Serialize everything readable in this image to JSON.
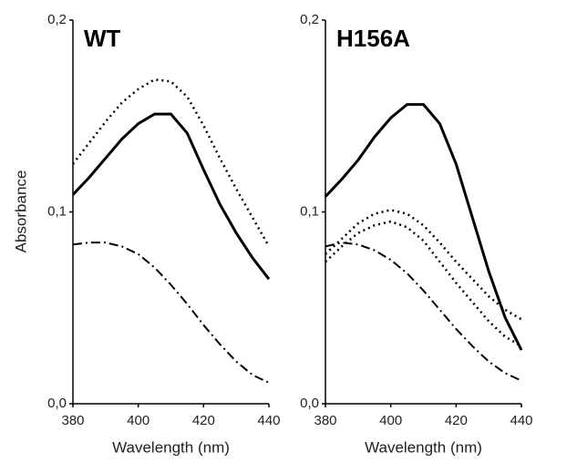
{
  "chart_data": [
    {
      "type": "line",
      "title": "WT",
      "y_label": "Absorbance",
      "x_label": "Wavelength (nm)",
      "x": [
        380,
        385,
        390,
        395,
        400,
        405,
        410,
        415,
        420,
        425,
        430,
        435,
        440
      ],
      "xlim": [
        380,
        440
      ],
      "xticks": [
        380,
        400,
        420,
        440
      ],
      "ylim": [
        0,
        0.2
      ],
      "yticks": [
        {
          "value": 0,
          "label": "0,0"
        },
        {
          "value": 0.1,
          "label": "0,1"
        },
        {
          "value": 0.2,
          "label": "0,2"
        }
      ],
      "series": [
        {
          "color": "#000000",
          "dash": "solid",
          "values": [
            0.109,
            0.118,
            0.128,
            0.138,
            0.146,
            0.151,
            0.151,
            0.141,
            0.122,
            0.104,
            0.089,
            0.076,
            0.065
          ]
        },
        {
          "color": "#000000",
          "dash": "dotted",
          "values": [
            0.125,
            0.136,
            0.147,
            0.157,
            0.164,
            0.169,
            0.168,
            0.16,
            0.145,
            0.128,
            0.112,
            0.097,
            0.082
          ]
        },
        {
          "color": "#000000",
          "dash": "dashdot",
          "values": [
            0.083,
            0.084,
            0.084,
            0.082,
            0.078,
            0.071,
            0.062,
            0.052,
            0.041,
            0.031,
            0.022,
            0.015,
            0.011
          ]
        }
      ]
    },
    {
      "type": "line",
      "title": "H156A",
      "x_label": "Wavelength (nm)",
      "x": [
        380,
        385,
        390,
        395,
        400,
        405,
        410,
        415,
        420,
        425,
        430,
        435,
        440
      ],
      "xlim": [
        380,
        440
      ],
      "xticks": [
        380,
        400,
        420,
        440
      ],
      "ylim": [
        0,
        0.2
      ],
      "yticks": [
        {
          "value": 0,
          "label": "0,0"
        },
        {
          "value": 0.1,
          "label": "0,1"
        },
        {
          "value": 0.2,
          "label": "0,2"
        }
      ],
      "series": [
        {
          "color": "#000000",
          "dash": "solid",
          "values": [
            0.108,
            0.117,
            0.127,
            0.139,
            0.149,
            0.156,
            0.156,
            0.146,
            0.125,
            0.097,
            0.069,
            0.045,
            0.028
          ]
        },
        {
          "color": "#000000",
          "dash": "dotted",
          "values": [
            0.078,
            0.086,
            0.094,
            0.099,
            0.101,
            0.099,
            0.093,
            0.084,
            0.074,
            0.065,
            0.056,
            0.049,
            0.044
          ]
        },
        {
          "color": "#000000",
          "dash": "dotted",
          "values": [
            0.074,
            0.082,
            0.089,
            0.093,
            0.095,
            0.092,
            0.085,
            0.074,
            0.063,
            0.053,
            0.043,
            0.035,
            0.03
          ]
        },
        {
          "color": "#000000",
          "dash": "dashdot",
          "values": [
            0.082,
            0.084,
            0.083,
            0.08,
            0.075,
            0.068,
            0.059,
            0.049,
            0.039,
            0.03,
            0.022,
            0.016,
            0.012
          ]
        }
      ]
    }
  ]
}
